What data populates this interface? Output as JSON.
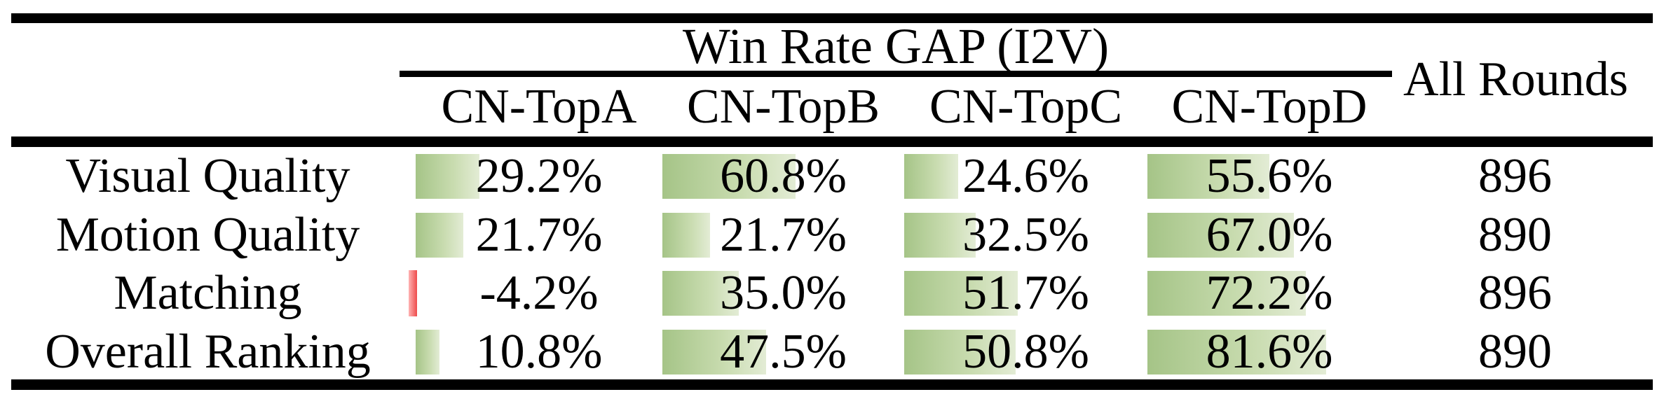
{
  "table": {
    "title": "Win Rate GAP (I2V)",
    "all_rounds_header": "All Rounds",
    "columns": [
      "CN-TopA",
      "CN-TopB",
      "CN-TopC",
      "CN-TopD"
    ],
    "rows": [
      {
        "label": "Visual Quality",
        "values": [
          "29.2%",
          "60.8%",
          "24.6%",
          "55.6%"
        ],
        "pcts": [
          29.2,
          60.8,
          24.6,
          55.6
        ],
        "all_rounds": "896"
      },
      {
        "label": "Motion Quality",
        "values": [
          "21.7%",
          "21.7%",
          "32.5%",
          "67.0%"
        ],
        "pcts": [
          21.7,
          21.7,
          32.5,
          67.0
        ],
        "all_rounds": "890"
      },
      {
        "label": "Matching",
        "values": [
          "-4.2%",
          "35.0%",
          "51.7%",
          "72.2%"
        ],
        "pcts": [
          -4.2,
          35.0,
          51.7,
          72.2
        ],
        "all_rounds": "896"
      },
      {
        "label": "Overall Ranking",
        "values": [
          "10.8%",
          "47.5%",
          "50.8%",
          "81.6%"
        ],
        "pcts": [
          10.8,
          47.5,
          50.8,
          81.6
        ],
        "all_rounds": "890"
      }
    ],
    "colors": {
      "rule": "#000000",
      "bar_positive_start": "#a5c487",
      "bar_positive_mid": "#c9dcb0",
      "bar_positive_end": "#e3ecd5",
      "bar_negative_start": "#ffb3b3",
      "bar_negative_end": "#ee4b4b"
    }
  },
  "chart_data": {
    "type": "table",
    "title": "Win Rate GAP (I2V)",
    "columns": [
      "CN-TopA",
      "CN-TopB",
      "CN-TopC",
      "CN-TopD",
      "All Rounds"
    ],
    "row_labels": [
      "Visual Quality",
      "Motion Quality",
      "Matching",
      "Overall Ranking"
    ],
    "win_rate_gap_percent": [
      [
        29.2,
        60.8,
        24.6,
        55.6
      ],
      [
        21.7,
        21.7,
        32.5,
        67.0
      ],
      [
        -4.2,
        35.0,
        51.7,
        72.2
      ],
      [
        10.8,
        47.5,
        50.8,
        81.6
      ]
    ],
    "all_rounds": [
      896,
      890,
      896,
      890
    ],
    "cell_bars": "in-cell data bars, green gradient for positive values, red sliver for negative values, length proportional to percent (~3.125 px per %)"
  }
}
